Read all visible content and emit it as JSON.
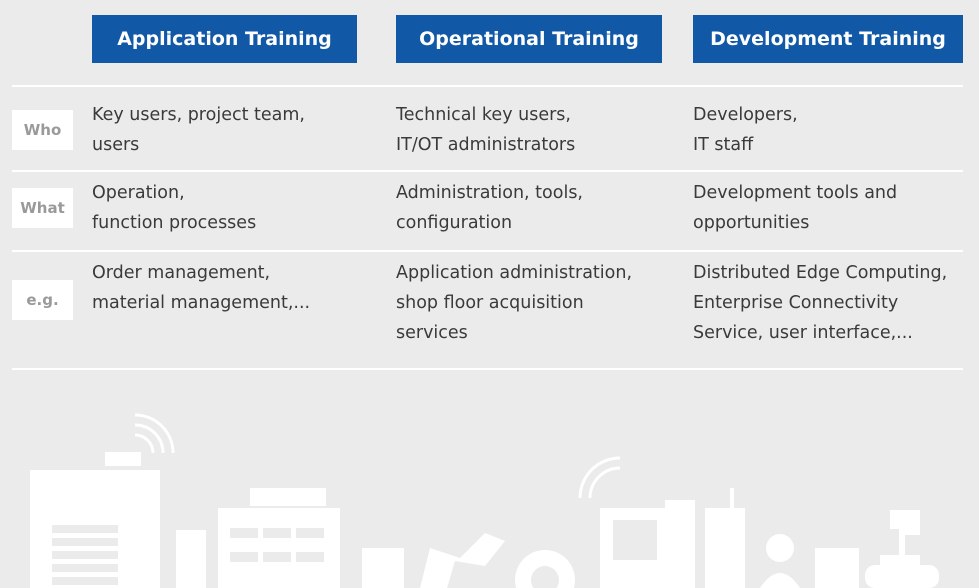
{
  "columns": [
    {
      "title": "Application Training"
    },
    {
      "title": "Operational Training"
    },
    {
      "title": "Development Training"
    }
  ],
  "rows": [
    {
      "label": "Who",
      "cells": [
        [
          "Key users, project team,",
          "users"
        ],
        [
          "Technical key users,",
          "IT/OT administrators"
        ],
        [
          "Developers,",
          "IT staff"
        ]
      ]
    },
    {
      "label": "What",
      "cells": [
        [
          "Operation,",
          "function processes"
        ],
        [
          "Administration, tools,",
          "configuration"
        ],
        [
          "Development tools and",
          "opportunities"
        ]
      ]
    },
    {
      "label": "e.g.",
      "cells": [
        [
          "Order management,",
          "material management,..."
        ],
        [
          "Application administration,",
          "shop floor acquisition",
          "services"
        ],
        [
          "Distributed Edge Computing,",
          "Enterprise Connectivity",
          "Service, user interface,..."
        ]
      ]
    }
  ]
}
